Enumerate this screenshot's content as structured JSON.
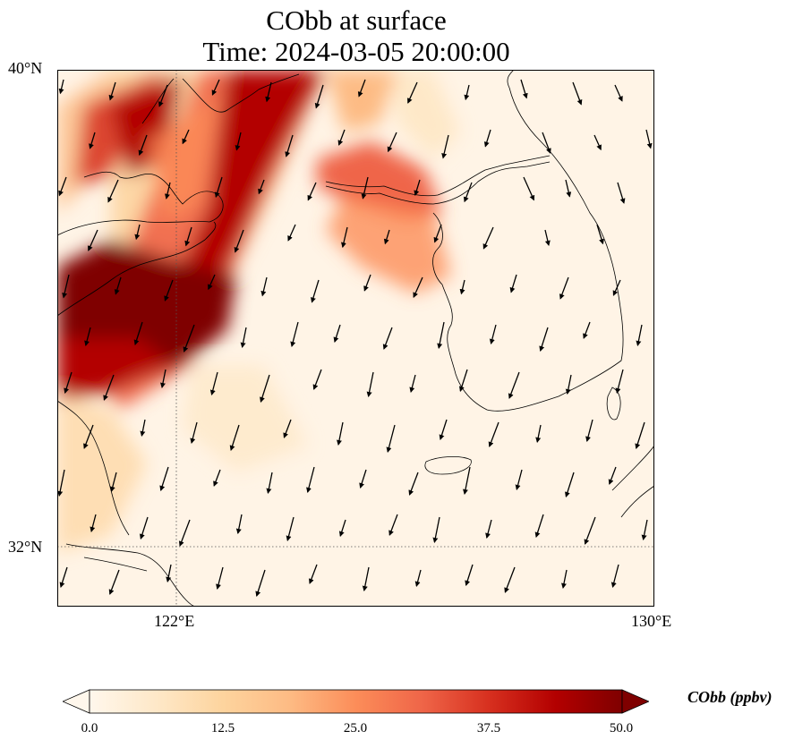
{
  "title": {
    "line1": "CObb at surface",
    "line2": "Time: 2024-03-05 20:00:00"
  },
  "axes": {
    "lat_ticks": [
      "40°N",
      "32°N"
    ],
    "lon_ticks": [
      "122°E",
      "130°E"
    ],
    "lon_range": [
      120,
      130
    ],
    "lat_range": [
      31,
      40
    ],
    "gridlines": "dotted"
  },
  "colorbar": {
    "label": "CObb (ppbv)",
    "ticks": [
      "0.0",
      "12.5",
      "25.0",
      "37.5",
      "50.0"
    ],
    "range": [
      0,
      50
    ],
    "colormap": "OrRd",
    "extend": "both",
    "colors": [
      "#fff7ec",
      "#fee8c8",
      "#fdd49e",
      "#fdbb84",
      "#fc8d59",
      "#ef6548",
      "#d7301f",
      "#b30000",
      "#7f0000"
    ]
  },
  "chart_data": {
    "type": "heatmap",
    "variable": "CObb",
    "units": "ppbv",
    "features": [
      "coastlines",
      "wind vectors"
    ],
    "plumes": [
      {
        "lon": 120.3,
        "lat": 35.3,
        "value": 50
      },
      {
        "lon": 121.6,
        "lat": 35.8,
        "value": 50
      },
      {
        "lon": 121.5,
        "lat": 39.3,
        "value": 48
      },
      {
        "lon": 123.5,
        "lat": 38.8,
        "value": 45
      },
      {
        "lon": 122.7,
        "lat": 37.3,
        "value": 40
      },
      {
        "lon": 125.0,
        "lat": 38.0,
        "value": 28
      },
      {
        "lon": 124.3,
        "lat": 36.8,
        "value": 22
      }
    ]
  }
}
